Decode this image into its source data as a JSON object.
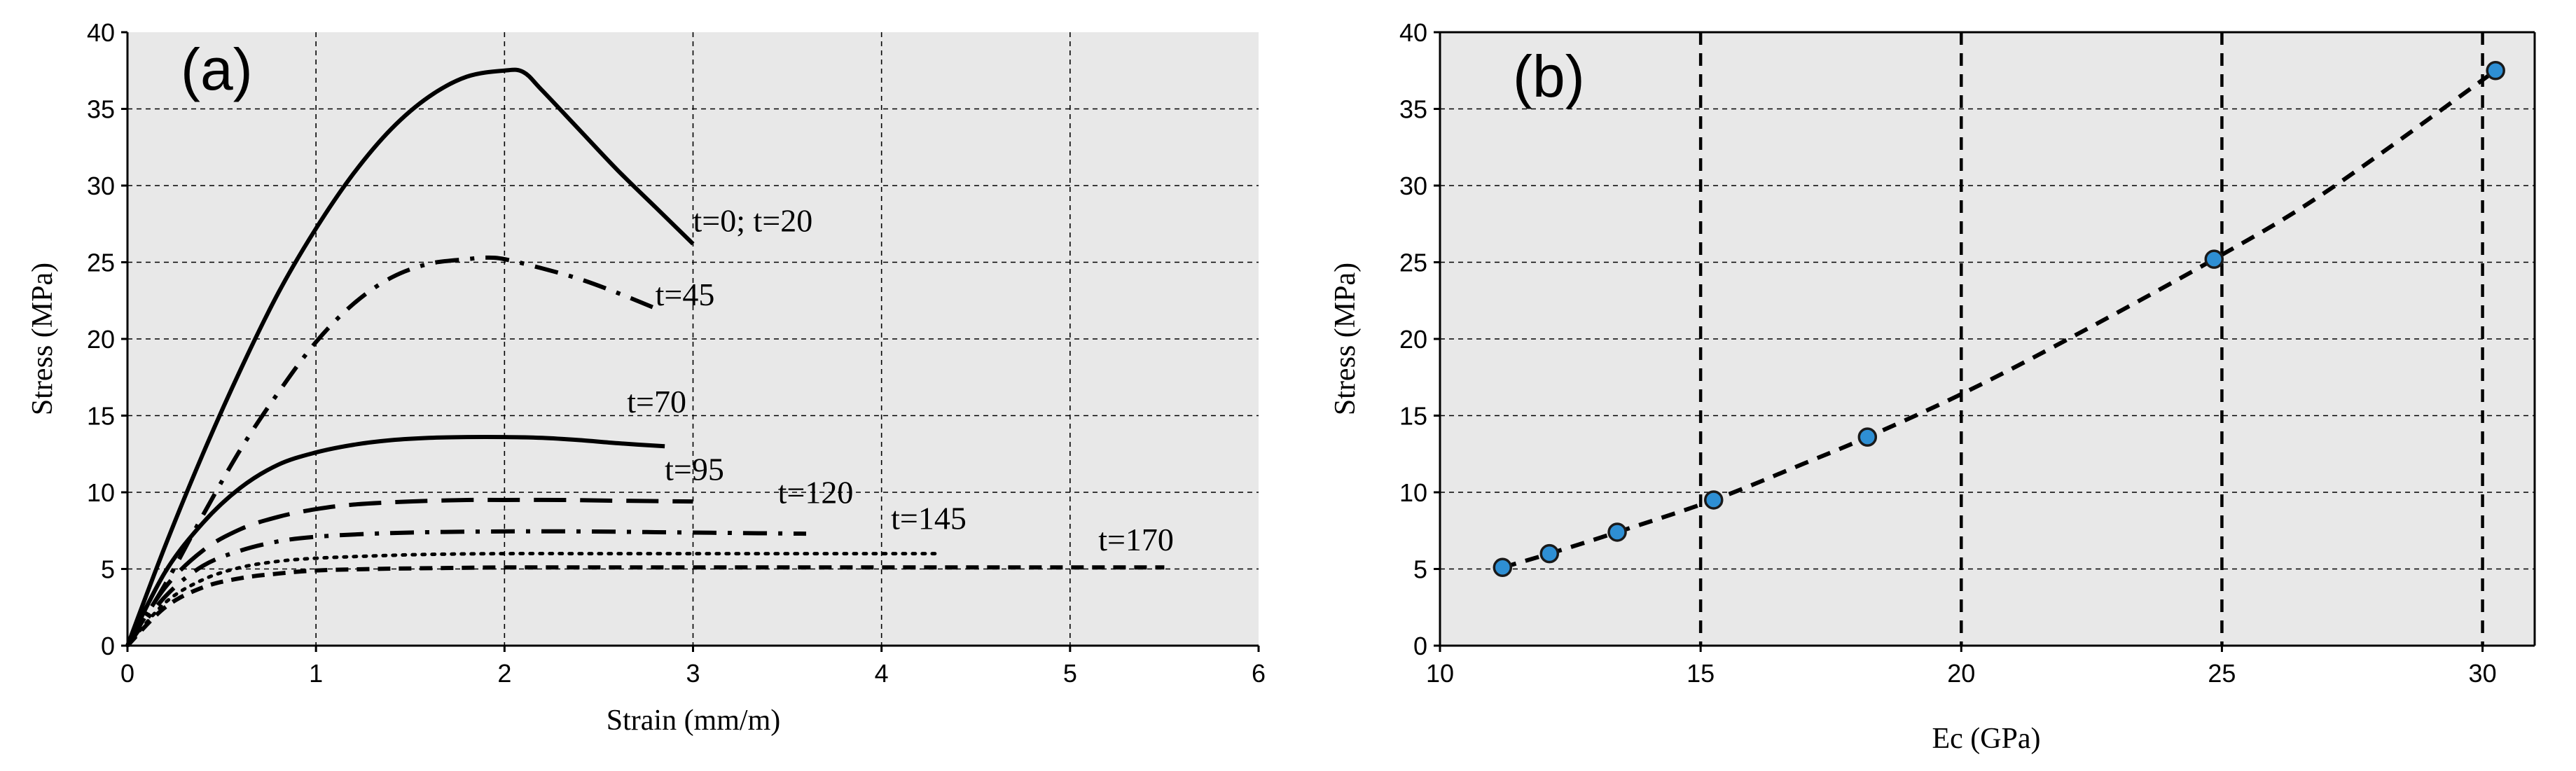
{
  "chart_data": [
    {
      "panel": "(a)",
      "type": "line",
      "title": "",
      "xlabel": "Strain (mm/m)",
      "ylabel": "Stress (MPa)",
      "xlim": [
        0,
        6
      ],
      "ylim": [
        0,
        40
      ],
      "xticks": [
        0,
        1,
        2,
        3,
        4,
        5,
        6
      ],
      "yticks": [
        0,
        5,
        10,
        15,
        20,
        25,
        30,
        35,
        40
      ],
      "grid": true,
      "series": [
        {
          "name": "t=0; t=20",
          "style": "solid",
          "label_at": [
            3.0,
            27.0
          ],
          "x": [
            0,
            0.2,
            0.4,
            0.6,
            0.8,
            1.0,
            1.2,
            1.4,
            1.6,
            1.8,
            2.0,
            2.1,
            2.2,
            2.4,
            2.6,
            2.8,
            3.0
          ],
          "y": [
            0,
            6.5,
            12.5,
            18.0,
            23.0,
            27.2,
            30.8,
            33.7,
            35.8,
            37.1,
            37.5,
            37.4,
            36.2,
            33.6,
            31.0,
            28.6,
            26.2
          ]
        },
        {
          "name": "t=45",
          "style": "dashdot",
          "label_at": [
            2.8,
            22.2
          ],
          "x": [
            0,
            0.2,
            0.4,
            0.6,
            0.8,
            1.0,
            1.2,
            1.4,
            1.6,
            1.8,
            1.9,
            2.0,
            2.2,
            2.4,
            2.6,
            2.8
          ],
          "y": [
            0,
            4.0,
            8.5,
            12.8,
            16.5,
            19.8,
            22.3,
            24.0,
            24.9,
            25.2,
            25.3,
            25.2,
            24.6,
            23.9,
            23.0,
            22.0
          ]
        },
        {
          "name": "t=70",
          "style": "solid",
          "label_at": [
            2.65,
            15.2
          ],
          "x": [
            0,
            0.2,
            0.4,
            0.6,
            0.8,
            1.0,
            1.2,
            1.4,
            1.6,
            1.8,
            2.0,
            2.2,
            2.4,
            2.6,
            2.85
          ],
          "y": [
            0,
            4.8,
            8.0,
            10.3,
            11.8,
            12.6,
            13.1,
            13.4,
            13.55,
            13.6,
            13.6,
            13.55,
            13.4,
            13.2,
            13.0
          ]
        },
        {
          "name": "t=95",
          "style": "dashed",
          "label_at": [
            2.85,
            10.8
          ],
          "x": [
            0,
            0.2,
            0.4,
            0.6,
            0.8,
            1.0,
            1.2,
            1.5,
            1.8,
            2.0,
            2.3,
            2.6,
            3.0
          ],
          "y": [
            0,
            3.8,
            6.2,
            7.6,
            8.4,
            8.9,
            9.2,
            9.4,
            9.5,
            9.5,
            9.5,
            9.45,
            9.4
          ]
        },
        {
          "name": "t=120",
          "style": "dashdot",
          "label_at": [
            3.45,
            9.3
          ],
          "x": [
            0,
            0.2,
            0.4,
            0.6,
            0.8,
            1.0,
            1.3,
            1.6,
            2.0,
            2.4,
            2.8,
            3.2,
            3.6
          ],
          "y": [
            0,
            3.2,
            5.2,
            6.2,
            6.8,
            7.1,
            7.3,
            7.4,
            7.45,
            7.45,
            7.4,
            7.35,
            7.3
          ]
        },
        {
          "name": "t=145",
          "style": "dotted",
          "label_at": [
            4.05,
            7.6
          ],
          "x": [
            0,
            0.2,
            0.4,
            0.6,
            0.8,
            1.0,
            1.3,
            1.6,
            2.0,
            2.5,
            3.0,
            3.5,
            4.0,
            4.3
          ],
          "y": [
            0,
            2.8,
            4.3,
            5.1,
            5.5,
            5.7,
            5.85,
            5.95,
            6.0,
            6.0,
            6.0,
            6.0,
            6.0,
            6.0
          ]
        },
        {
          "name": "t=170",
          "style": "dashed-fine",
          "label_at": [
            5.15,
            6.2
          ],
          "x": [
            0,
            0.2,
            0.4,
            0.6,
            0.8,
            1.0,
            1.3,
            1.6,
            2.0,
            2.5,
            3.0,
            3.5,
            4.0,
            4.5,
            5.0,
            5.5
          ],
          "y": [
            0,
            2.5,
            3.8,
            4.4,
            4.7,
            4.9,
            5.0,
            5.05,
            5.1,
            5.1,
            5.1,
            5.1,
            5.1,
            5.1,
            5.1,
            5.1
          ]
        }
      ]
    },
    {
      "panel": "(b)",
      "type": "scatter",
      "title": "",
      "xlabel": "Ec (GPa)",
      "ylabel": "Stress (MPa)",
      "xlim": [
        10,
        31
      ],
      "ylim": [
        0,
        40
      ],
      "xticks": [
        10,
        15,
        20,
        25,
        30
      ],
      "yticks": [
        0,
        5,
        10,
        15,
        20,
        25,
        30,
        35,
        40
      ],
      "grid": true,
      "marker_color": "#2e8fd4",
      "points": {
        "x": [
          11.2,
          12.1,
          13.4,
          15.25,
          18.2,
          24.85,
          30.25
        ],
        "y": [
          5.1,
          6.0,
          7.4,
          9.5,
          13.6,
          25.2,
          37.5
        ]
      },
      "fit_line": {
        "style": "dashed",
        "x": [
          11.2,
          12.1,
          13.4,
          15.25,
          17.0,
          18.2,
          20.0,
          22.0,
          24.85,
          27.0,
          30.25
        ],
        "y": [
          5.1,
          6.0,
          7.4,
          9.5,
          11.9,
          13.6,
          16.4,
          19.9,
          25.2,
          29.6,
          37.5
        ]
      }
    }
  ]
}
